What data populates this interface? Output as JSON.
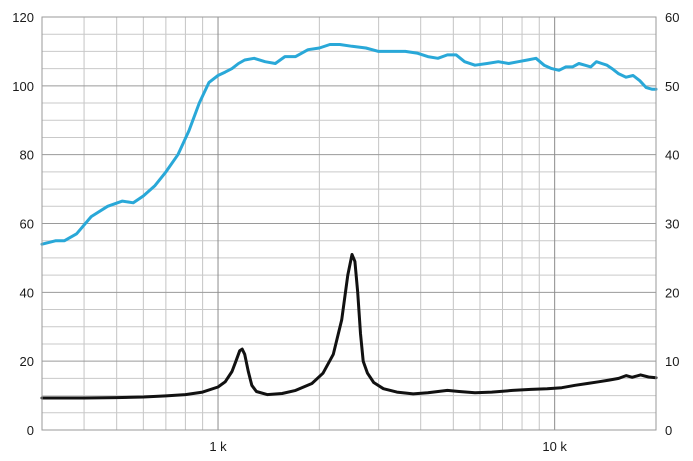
{
  "chart_data": {
    "type": "line",
    "x_scale": "log",
    "xlim": [
      300,
      20000
    ],
    "x_ticks": [
      {
        "value": 1000,
        "label": "1 k"
      },
      {
        "value": 10000,
        "label": "10 k"
      }
    ],
    "ylim_left": [
      0,
      120
    ],
    "ylim_right": [
      0,
      60
    ],
    "y_ticks_left": [
      "0",
      "20",
      "40",
      "60",
      "80",
      "100",
      "120"
    ],
    "y_ticks_right": [
      "0",
      "10",
      "20",
      "30",
      "40",
      "50",
      "60"
    ],
    "grid": true,
    "series": [
      {
        "axis": "left",
        "color": "#29a8d8",
        "x": [
          300,
          330,
          350,
          380,
          420,
          470,
          520,
          560,
          600,
          650,
          700,
          760,
          820,
          880,
          940,
          1000,
          1050,
          1100,
          1150,
          1200,
          1280,
          1380,
          1480,
          1580,
          1700,
          1850,
          2000,
          2150,
          2300,
          2500,
          2750,
          3000,
          3300,
          3600,
          3900,
          4200,
          4500,
          4800,
          5100,
          5400,
          5800,
          6300,
          6800,
          7300,
          7800,
          8300,
          8800,
          9300,
          9800,
          10300,
          10800,
          11300,
          11800,
          12300,
          12800,
          13300,
          13800,
          14300,
          14800,
          15500,
          16300,
          17100,
          17900,
          18700,
          19500,
          20000
        ],
        "values": [
          54,
          55,
          55,
          57,
          62,
          65,
          66.5,
          66,
          68,
          71,
          75,
          80,
          87,
          95,
          101,
          103,
          104,
          105,
          106.5,
          107.5,
          108,
          107,
          106.5,
          108.5,
          108.5,
          110.5,
          111,
          112,
          112,
          111.5,
          111,
          110,
          110,
          110,
          109.5,
          108.5,
          108,
          109,
          109,
          107,
          106,
          106.5,
          107,
          106.5,
          107,
          107.5,
          108,
          106,
          105,
          104.5,
          105.5,
          105.5,
          106.5,
          106,
          105.5,
          107,
          106.5,
          106,
          105,
          103.5,
          102.5,
          103,
          101.5,
          99.5,
          99,
          99
        ]
      },
      {
        "axis": "left",
        "color": "#111111",
        "x": [
          300,
          400,
          500,
          600,
          700,
          800,
          900,
          1000,
          1050,
          1100,
          1130,
          1160,
          1180,
          1200,
          1230,
          1260,
          1300,
          1400,
          1550,
          1700,
          1900,
          2050,
          2200,
          2330,
          2430,
          2500,
          2550,
          2600,
          2650,
          2700,
          2780,
          2900,
          3100,
          3400,
          3800,
          4200,
          4800,
          5200,
          5800,
          6500,
          7500,
          8500,
          9500,
          10500,
          11500,
          12500,
          13500,
          14500,
          15500,
          16300,
          17000,
          18000,
          19000,
          20000
        ],
        "values": [
          9.3,
          9.3,
          9.4,
          9.6,
          9.9,
          10.3,
          11,
          12.5,
          14,
          17,
          20,
          23,
          23.5,
          22,
          17,
          13,
          11.2,
          10.3,
          10.6,
          11.5,
          13.5,
          16.5,
          22,
          32,
          45,
          51,
          49,
          40,
          28,
          20,
          16.5,
          13.8,
          12,
          11,
          10.5,
          10.8,
          11.5,
          11.2,
          10.8,
          11,
          11.5,
          11.8,
          12,
          12.3,
          13,
          13.5,
          14,
          14.5,
          15,
          15.8,
          15.3,
          16,
          15.4,
          15.2
        ]
      }
    ]
  }
}
